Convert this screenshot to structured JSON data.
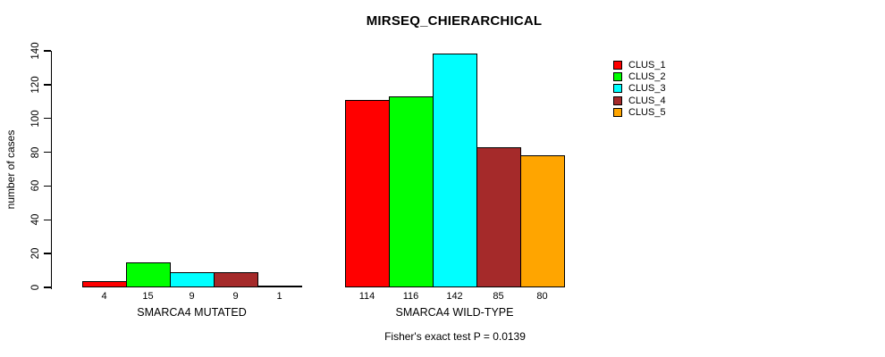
{
  "title": "MIRSEQ_CHIERARCHICAL",
  "y_axis_label": "number of cases",
  "annotation": "Fisher's exact test P = 0.0139",
  "legend": {
    "position": "top-right",
    "items": [
      {
        "label": "CLUS_1",
        "color": "#FF0000"
      },
      {
        "label": "CLUS_2",
        "color": "#00FF00"
      },
      {
        "label": "CLUS_3",
        "color": "#00FFFF"
      },
      {
        "label": "CLUS_4",
        "color": "#A52A2A"
      },
      {
        "label": "CLUS_5",
        "color": "#FFA500"
      }
    ]
  },
  "chart_data": {
    "type": "bar",
    "title": "MIRSEQ_CHIERARCHICAL",
    "xlabel": "",
    "ylabel": "number of cases",
    "ylim": [
      0,
      143
    ],
    "yticks": [
      0,
      20,
      40,
      60,
      80,
      100,
      120,
      140
    ],
    "grid": false,
    "legend_position": "right",
    "series_names": [
      "CLUS_1",
      "CLUS_2",
      "CLUS_3",
      "CLUS_4",
      "CLUS_5"
    ],
    "series_colors": [
      "#FF0000",
      "#00FF00",
      "#00FFFF",
      "#A52A2A",
      "#FFA500"
    ],
    "groups": [
      {
        "label": "SMARCA4 MUTATED",
        "values": [
          4,
          15,
          9,
          9,
          1
        ]
      },
      {
        "label": "SMARCA4 WILD-TYPE",
        "values": [
          114,
          116,
          142,
          85,
          80
        ]
      }
    ],
    "bar_values_shown": true,
    "annotation": "Fisher's exact test P = 0.0139"
  }
}
